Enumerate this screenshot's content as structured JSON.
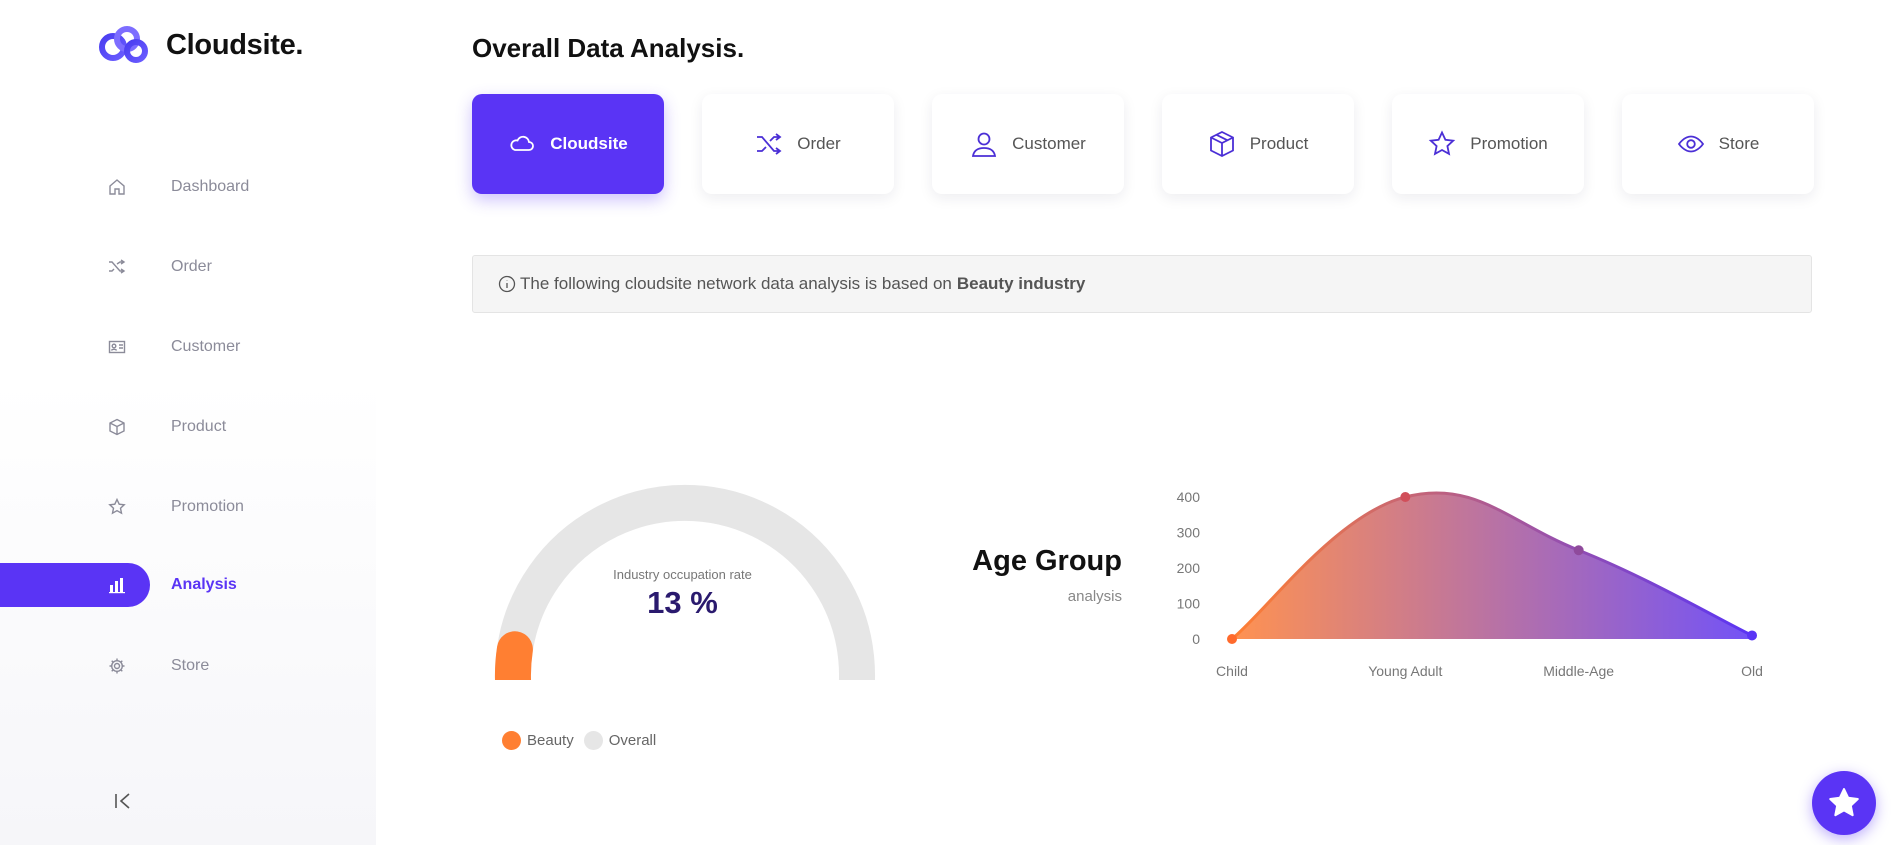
{
  "brand": {
    "name": "Cloudsite.",
    "accent": "#5a34f5"
  },
  "sidebar": {
    "items": [
      {
        "label": "Dashboard",
        "icon": "home-icon"
      },
      {
        "label": "Order",
        "icon": "shuffle-icon"
      },
      {
        "label": "Customer",
        "icon": "id-card-icon"
      },
      {
        "label": "Product",
        "icon": "box-icon"
      },
      {
        "label": "Promotion",
        "icon": "star-icon"
      },
      {
        "label": "Analysis",
        "icon": "bar-chart-icon",
        "active": true
      },
      {
        "label": "Store",
        "icon": "gear-icon"
      }
    ],
    "collapse_icon": "collapse-sidebar-icon"
  },
  "main": {
    "title": "Overall Data Analysis.",
    "tabs": [
      {
        "label": "Cloudsite",
        "icon": "cloud-icon",
        "active": true
      },
      {
        "label": "Order",
        "icon": "shuffle-icon"
      },
      {
        "label": "Customer",
        "icon": "user-icon"
      },
      {
        "label": "Product",
        "icon": "box-icon"
      },
      {
        "label": "Promotion",
        "icon": "star-icon"
      },
      {
        "label": "Store",
        "icon": "eye-icon"
      }
    ],
    "info": {
      "text": "The following cloudsite network data analysis is based on",
      "highlight": "Beauty industry"
    }
  },
  "chart_data": [
    {
      "type": "gauge",
      "caption": "Industry occupation rate",
      "value_label": "13 %",
      "value": 13,
      "max": 100,
      "legend": [
        {
          "name": "Beauty",
          "color": "#ff7f32"
        },
        {
          "name": "Overall",
          "color": "#e6e6e6"
        }
      ]
    },
    {
      "type": "area",
      "title": "Age Group",
      "subtitle": "analysis",
      "categories": [
        "Child",
        "Young Adult",
        "Middle-Age",
        "Old"
      ],
      "values": [
        0,
        400,
        250,
        10
      ],
      "yticks": [
        0,
        100,
        200,
        300,
        400
      ],
      "ylim": [
        0,
        400
      ],
      "gradient": [
        "#ff7f32",
        "#5a34f5"
      ]
    }
  ],
  "fab": {
    "icon": "star-icon"
  }
}
